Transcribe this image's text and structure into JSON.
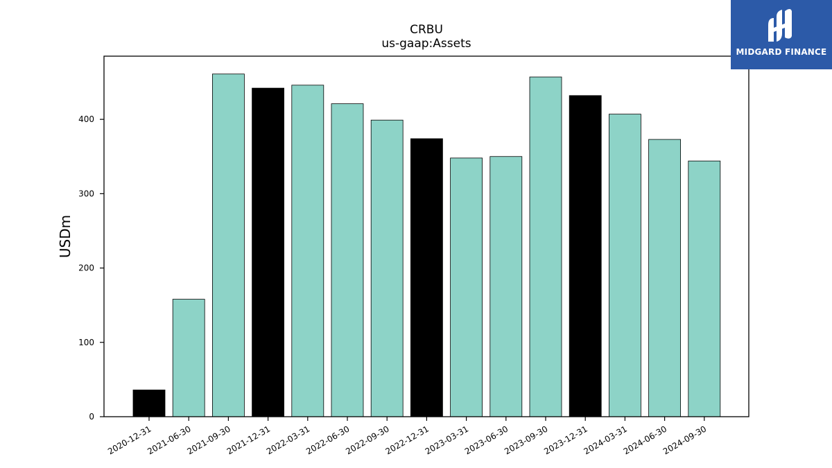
{
  "logo": {
    "text": "MIDGARD FINANCE",
    "bg_color": "#2c5aa8"
  },
  "chart_data": {
    "type": "bar",
    "title": "CRBU",
    "subtitle": "us-gaap:Assets",
    "xlabel": "",
    "ylabel": "USDm",
    "ylim": [
      0,
      485
    ],
    "yticks": [
      0,
      100,
      200,
      300,
      400
    ],
    "grid": false,
    "categories": [
      "2020-12-31",
      "2021-06-30",
      "2021-09-30",
      "2021-12-31",
      "2022-03-31",
      "2022-06-30",
      "2022-09-30",
      "2022-12-31",
      "2023-03-31",
      "2023-06-30",
      "2023-09-30",
      "2023-12-31",
      "2024-03-31",
      "2024-06-30",
      "2024-09-30"
    ],
    "values": [
      36,
      158,
      461,
      442,
      446,
      421,
      399,
      374,
      348,
      350,
      457,
      432,
      407,
      373,
      344
    ],
    "colors": [
      "#000000",
      "#8dd3c7",
      "#8dd3c7",
      "#000000",
      "#8dd3c7",
      "#8dd3c7",
      "#8dd3c7",
      "#000000",
      "#8dd3c7",
      "#8dd3c7",
      "#8dd3c7",
      "#000000",
      "#8dd3c7",
      "#8dd3c7",
      "#8dd3c7"
    ]
  }
}
